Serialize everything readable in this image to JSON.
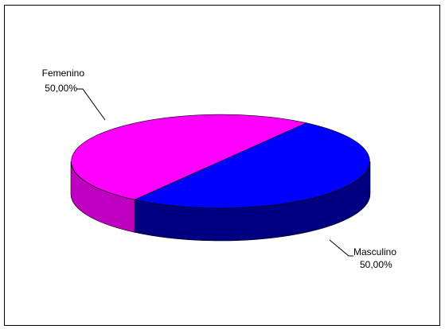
{
  "chart_data": {
    "type": "pie",
    "three_d": true,
    "legend": "none",
    "slices": [
      {
        "name": "Femenino",
        "value": 50.0,
        "label": "50,00%",
        "color": "#ff00ff",
        "side_color": "#c000c0"
      },
      {
        "name": "Masculino",
        "value": 50.0,
        "label": "50,00%",
        "color": "#0000ff",
        "side_color": "#000080"
      }
    ],
    "border_color": "#000000"
  }
}
